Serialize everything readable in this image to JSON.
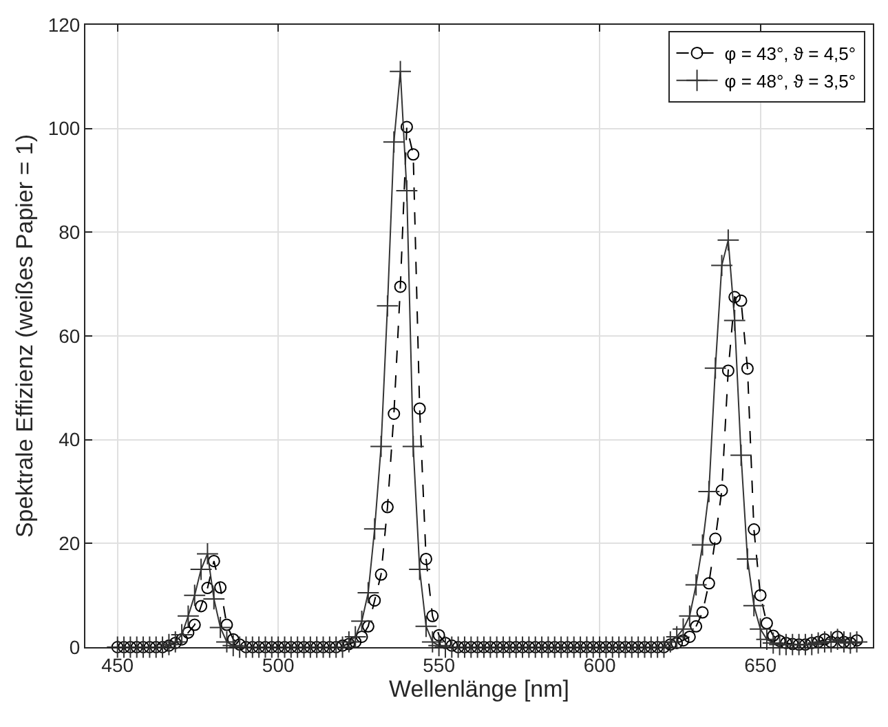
{
  "chart_data": {
    "type": "line",
    "xlabel": "Wellenlänge [nm]",
    "ylabel": "Spektrale Effizienz (weißes Papier = 1)",
    "x": [
      450,
      452,
      454,
      456,
      458,
      460,
      462,
      464,
      466,
      468,
      470,
      472,
      474,
      476,
      478,
      480,
      482,
      484,
      486,
      488,
      490,
      492,
      494,
      496,
      498,
      500,
      502,
      504,
      506,
      508,
      510,
      512,
      514,
      516,
      518,
      520,
      522,
      524,
      526,
      528,
      530,
      532,
      534,
      536,
      538,
      540,
      542,
      544,
      546,
      548,
      550,
      552,
      554,
      556,
      558,
      560,
      562,
      564,
      566,
      568,
      570,
      572,
      574,
      576,
      578,
      580,
      582,
      584,
      586,
      588,
      590,
      592,
      594,
      596,
      598,
      600,
      602,
      604,
      606,
      608,
      610,
      612,
      614,
      616,
      618,
      620,
      622,
      624,
      626,
      628,
      630,
      632,
      634,
      636,
      638,
      640,
      642,
      644,
      646,
      648,
      650,
      652,
      654,
      656,
      658,
      660,
      662,
      664,
      666,
      668,
      670,
      672,
      674,
      676,
      678,
      680
    ],
    "series": [
      {
        "name": "φ = 43°, ϑ = 4,5°",
        "color": "#000000",
        "marker": "circle",
        "line_style": "dashed",
        "values": [
          0,
          0,
          0,
          0,
          0,
          0,
          0,
          0,
          0.3,
          0.8,
          1.5,
          2.8,
          4.3,
          7.9,
          11.4,
          16.6,
          11.5,
          4.3,
          1.5,
          0.5,
          0,
          0,
          0,
          0,
          0,
          0,
          0,
          0,
          0,
          0,
          0,
          0,
          0,
          0,
          0,
          0.3,
          0.6,
          1,
          2,
          4,
          9,
          14,
          27,
          45,
          69.5,
          100.3,
          95,
          46,
          17,
          6,
          2.3,
          0.8,
          0.3,
          0,
          0,
          0,
          0,
          0,
          0,
          0,
          0,
          0,
          0,
          0,
          0,
          0,
          0,
          0,
          0,
          0,
          0,
          0,
          0,
          0,
          0,
          0,
          0,
          0,
          0,
          0,
          0,
          0,
          0,
          0,
          0,
          0,
          0.5,
          0.8,
          1.3,
          2,
          4,
          6.7,
          12.3,
          20.9,
          30.2,
          53.3,
          67.5,
          66.8,
          53.7,
          22.7,
          10,
          4.6,
          2.2,
          1.2,
          0.8,
          0.6,
          0.5,
          0.5,
          0.8,
          1,
          1.5,
          1,
          2,
          1,
          0.8,
          1.3
        ]
      },
      {
        "name": "φ = 48°, ϑ = 3,5°",
        "color": "#333333",
        "marker": "cross",
        "line_style": "solid",
        "values": [
          0,
          0,
          0,
          0,
          0,
          0,
          0,
          0,
          0.5,
          1,
          2.4,
          6,
          10,
          15,
          18,
          9.3,
          3.8,
          1,
          0.3,
          0,
          0,
          0,
          0,
          0,
          0,
          0,
          0,
          0,
          0,
          0,
          0,
          0,
          0,
          0,
          0,
          0,
          1,
          2,
          5,
          10.5,
          22.8,
          38.7,
          65.8,
          97.4,
          111,
          88,
          38.7,
          15,
          4,
          1,
          0.3,
          0,
          0,
          0,
          0,
          0,
          0,
          0,
          0,
          0,
          0,
          0,
          0,
          0,
          0,
          0,
          0,
          0,
          0,
          0,
          0,
          0,
          0,
          0,
          0,
          0,
          0,
          0,
          0,
          0,
          0,
          0,
          0,
          0,
          0,
          0,
          1,
          2,
          3.5,
          6,
          12,
          19.7,
          30,
          53.8,
          73.6,
          78.5,
          63,
          37,
          17,
          8,
          3.5,
          1.5,
          0.8,
          0.5,
          0.5,
          0.5,
          0.5,
          0.5,
          0.5,
          0.8,
          1,
          1,
          1.5,
          1,
          0.8,
          1
        ]
      }
    ],
    "xlim": [
      440,
      685
    ],
    "xticks": [
      450,
      500,
      550,
      600,
      650
    ],
    "ylim": [
      0,
      120
    ],
    "yticks": [
      0,
      20,
      40,
      60,
      80,
      100,
      120
    ],
    "grid": true,
    "legend": "top right"
  }
}
